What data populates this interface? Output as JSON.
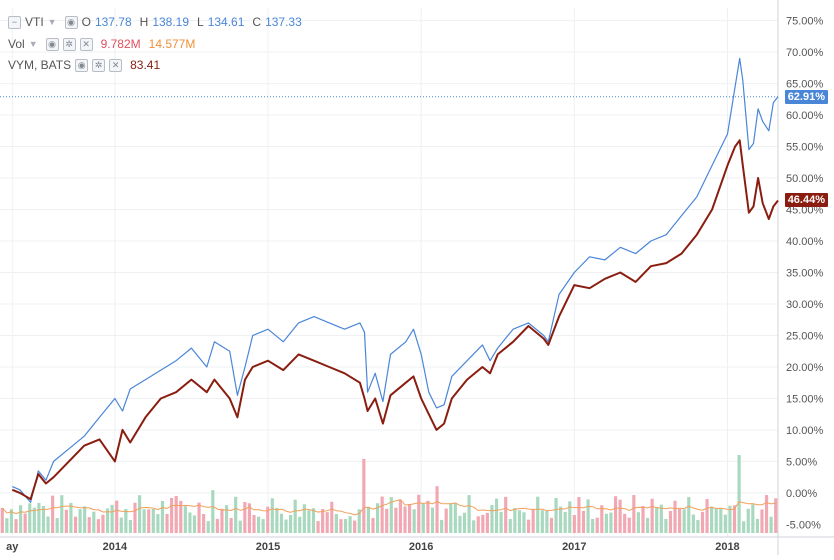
{
  "legend": {
    "vti": {
      "symbol": "VTI",
      "open_label": "O",
      "open": "137.78",
      "high_label": "H",
      "high": "138.19",
      "low_label": "L",
      "low": "134.61",
      "close_label": "C",
      "close": "137.33"
    },
    "vol": {
      "label": "Vol",
      "value1": "9.782M",
      "value2": "14.577M"
    },
    "vym": {
      "symbol": "VYM, BATS",
      "value": "83.41"
    }
  },
  "price_tags": {
    "vti": "62.91%",
    "vym": "46.44%"
  },
  "colors": {
    "vti": "#4a86d8",
    "vym": "#8a1d0f",
    "vol_up": "#a8d8be",
    "vol_down": "#f2a8b2",
    "vol_ma": "#f2a05a",
    "grid": "#eef0f3"
  },
  "chart_data": {
    "type": "line",
    "xlabel": "",
    "ylabel": "",
    "x_range": [
      2013.25,
      2018.33
    ],
    "ylim": [
      -7,
      77
    ],
    "y_ticks": [
      75,
      70,
      65,
      60,
      55,
      50,
      45,
      40,
      35,
      30,
      25,
      20,
      15,
      10,
      5,
      0,
      -5
    ],
    "y_tick_labels": [
      "75.00%",
      "70.00%",
      "65.00%",
      "60.00%",
      "55.00%",
      "50.00%",
      "45.00%",
      "40.00%",
      "35.00%",
      "30.00%",
      "25.00%",
      "20.00%",
      "15.00%",
      "10.00%",
      "5.00%",
      "0.00%",
      "-5.00%"
    ],
    "x_ticks": [
      2013.33,
      2014,
      2015,
      2016,
      2017,
      2018
    ],
    "x_tick_labels": [
      "ay",
      "2014",
      "2015",
      "2016",
      "2017",
      "2018"
    ],
    "grid": true,
    "series": [
      {
        "key": "vti",
        "values": [
          [
            2013.33,
            1.0
          ],
          [
            2013.38,
            0.5
          ],
          [
            2013.45,
            -1.5
          ],
          [
            2013.5,
            3.5
          ],
          [
            2013.55,
            2.0
          ],
          [
            2013.6,
            5.0
          ],
          [
            2013.7,
            7.0
          ],
          [
            2013.8,
            9.0
          ],
          [
            2013.9,
            12.0
          ],
          [
            2014.0,
            15.0
          ],
          [
            2014.05,
            13.0
          ],
          [
            2014.1,
            16.5
          ],
          [
            2014.2,
            18.0
          ],
          [
            2014.3,
            19.5
          ],
          [
            2014.4,
            21.0
          ],
          [
            2014.5,
            23.0
          ],
          [
            2014.6,
            20.0
          ],
          [
            2014.65,
            24.0
          ],
          [
            2014.75,
            22.5
          ],
          [
            2014.8,
            15.5
          ],
          [
            2014.85,
            20.0
          ],
          [
            2014.9,
            25.0
          ],
          [
            2015.0,
            26.0
          ],
          [
            2015.1,
            24.0
          ],
          [
            2015.2,
            27.0
          ],
          [
            2015.3,
            28.0
          ],
          [
            2015.4,
            27.0
          ],
          [
            2015.5,
            26.0
          ],
          [
            2015.6,
            27.0
          ],
          [
            2015.63,
            25.5
          ],
          [
            2015.65,
            16.0
          ],
          [
            2015.7,
            19.0
          ],
          [
            2015.75,
            14.5
          ],
          [
            2015.8,
            22.0
          ],
          [
            2015.9,
            24.0
          ],
          [
            2015.95,
            26.0
          ],
          [
            2016.0,
            22.0
          ],
          [
            2016.05,
            16.0
          ],
          [
            2016.1,
            13.5
          ],
          [
            2016.15,
            14.0
          ],
          [
            2016.2,
            18.5
          ],
          [
            2016.3,
            21.0
          ],
          [
            2016.4,
            23.5
          ],
          [
            2016.45,
            21.0
          ],
          [
            2016.5,
            23.0
          ],
          [
            2016.6,
            26.0
          ],
          [
            2016.7,
            27.0
          ],
          [
            2016.8,
            25.0
          ],
          [
            2016.83,
            24.0
          ],
          [
            2016.9,
            31.5
          ],
          [
            2017.0,
            35.0
          ],
          [
            2017.1,
            37.5
          ],
          [
            2017.2,
            37.0
          ],
          [
            2017.3,
            39.0
          ],
          [
            2017.4,
            38.0
          ],
          [
            2017.5,
            40.0
          ],
          [
            2017.6,
            41.0
          ],
          [
            2017.7,
            44.0
          ],
          [
            2017.8,
            47.0
          ],
          [
            2017.9,
            52.0
          ],
          [
            2018.0,
            57.0
          ],
          [
            2018.05,
            64.5
          ],
          [
            2018.08,
            69.0
          ],
          [
            2018.1,
            65.5
          ],
          [
            2018.14,
            54.5
          ],
          [
            2018.17,
            55.5
          ],
          [
            2018.2,
            61.0
          ],
          [
            2018.23,
            59.0
          ],
          [
            2018.27,
            57.5
          ],
          [
            2018.3,
            62.0
          ],
          [
            2018.33,
            62.91
          ]
        ]
      },
      {
        "key": "vym",
        "values": [
          [
            2013.33,
            0.5
          ],
          [
            2013.38,
            0.0
          ],
          [
            2013.45,
            -1.0
          ],
          [
            2013.5,
            3.0
          ],
          [
            2013.55,
            1.5
          ],
          [
            2013.6,
            2.5
          ],
          [
            2013.7,
            5.0
          ],
          [
            2013.8,
            7.5
          ],
          [
            2013.9,
            8.5
          ],
          [
            2014.0,
            5.0
          ],
          [
            2014.05,
            10.0
          ],
          [
            2014.1,
            8.0
          ],
          [
            2014.2,
            12.0
          ],
          [
            2014.3,
            15.0
          ],
          [
            2014.4,
            16.0
          ],
          [
            2014.5,
            18.0
          ],
          [
            2014.6,
            16.0
          ],
          [
            2014.65,
            18.0
          ],
          [
            2014.75,
            15.0
          ],
          [
            2014.8,
            12.0
          ],
          [
            2014.85,
            18.0
          ],
          [
            2014.9,
            20.0
          ],
          [
            2015.0,
            21.0
          ],
          [
            2015.1,
            19.5
          ],
          [
            2015.2,
            22.0
          ],
          [
            2015.3,
            21.0
          ],
          [
            2015.4,
            20.0
          ],
          [
            2015.5,
            19.0
          ],
          [
            2015.6,
            17.5
          ],
          [
            2015.63,
            15.0
          ],
          [
            2015.65,
            13.0
          ],
          [
            2015.7,
            15.0
          ],
          [
            2015.75,
            11.0
          ],
          [
            2015.8,
            15.5
          ],
          [
            2015.9,
            17.5
          ],
          [
            2015.95,
            18.5
          ],
          [
            2016.0,
            15.0
          ],
          [
            2016.05,
            12.5
          ],
          [
            2016.1,
            10.0
          ],
          [
            2016.15,
            11.0
          ],
          [
            2016.2,
            15.0
          ],
          [
            2016.3,
            18.0
          ],
          [
            2016.4,
            20.0
          ],
          [
            2016.45,
            19.0
          ],
          [
            2016.5,
            22.0
          ],
          [
            2016.6,
            24.0
          ],
          [
            2016.7,
            26.5
          ],
          [
            2016.8,
            24.5
          ],
          [
            2016.83,
            23.5
          ],
          [
            2016.9,
            28.0
          ],
          [
            2017.0,
            33.0
          ],
          [
            2017.1,
            32.5
          ],
          [
            2017.2,
            34.0
          ],
          [
            2017.3,
            35.0
          ],
          [
            2017.4,
            33.5
          ],
          [
            2017.5,
            36.0
          ],
          [
            2017.6,
            36.5
          ],
          [
            2017.7,
            38.0
          ],
          [
            2017.8,
            41.0
          ],
          [
            2017.9,
            45.0
          ],
          [
            2018.0,
            52.0
          ],
          [
            2018.05,
            55.0
          ],
          [
            2018.08,
            56.0
          ],
          [
            2018.1,
            52.0
          ],
          [
            2018.14,
            44.5
          ],
          [
            2018.17,
            45.5
          ],
          [
            2018.2,
            50.0
          ],
          [
            2018.23,
            46.0
          ],
          [
            2018.27,
            43.5
          ],
          [
            2018.3,
            45.5
          ],
          [
            2018.33,
            46.44
          ]
        ]
      }
    ],
    "volume": {
      "overlay_top_frac": 0.82,
      "note": "bars are relative heights 0-1 within the volume pane",
      "up_prob": 0.55,
      "count": 170,
      "spikes": [
        [
          2015.62,
          0.95
        ],
        [
          2018.08,
          1.0
        ],
        [
          2016.1,
          0.6
        ],
        [
          2014.65,
          0.55
        ]
      ]
    }
  }
}
